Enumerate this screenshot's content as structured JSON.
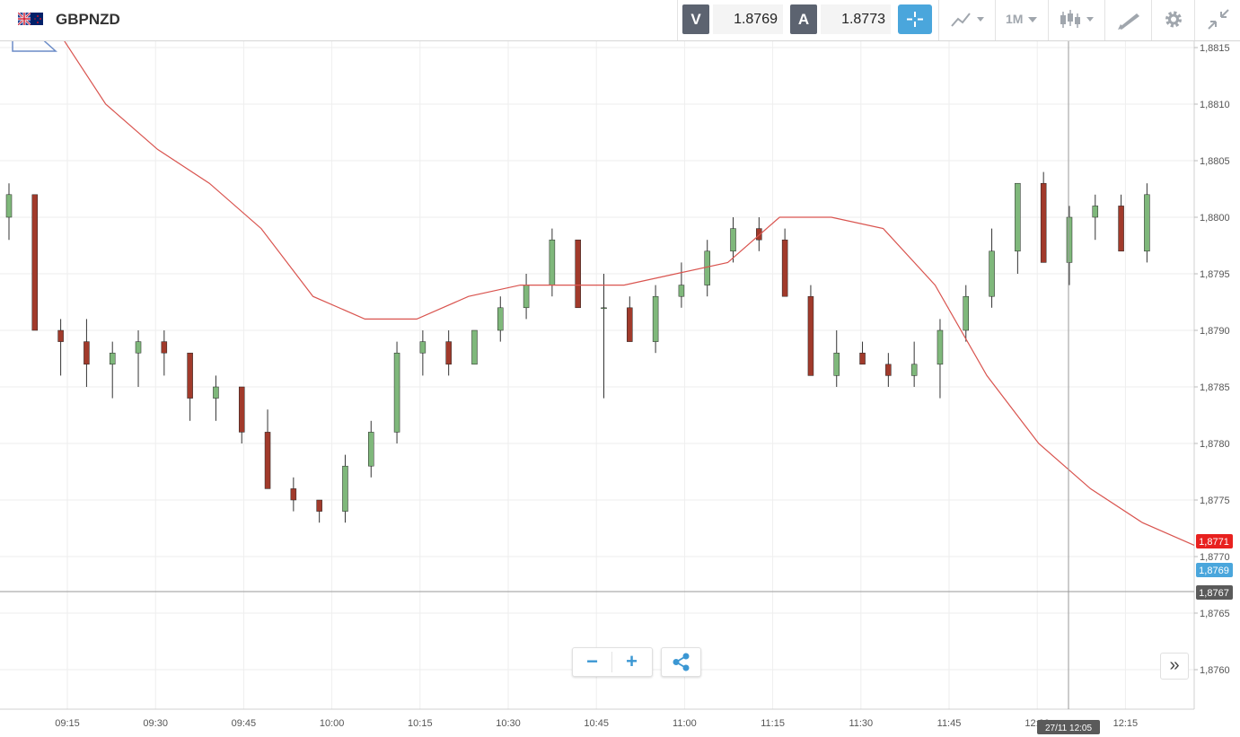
{
  "symbol": "GBPNZD",
  "sell": {
    "label": "V",
    "value": "1.8769"
  },
  "buy": {
    "label": "A",
    "value": "1.8773"
  },
  "toolbar": {
    "timeframe": "1M"
  },
  "crosshair_time": "27/11 12:05",
  "price_tags": {
    "red": {
      "value": "1,8771",
      "color": "#e8211f"
    },
    "blue": {
      "value": "1,8769",
      "color": "#4aa6dc"
    },
    "gray": {
      "value": "1,8767",
      "color": "#5a5a5a"
    }
  },
  "colors": {
    "up": "#7fb87b",
    "down": "#a13a2b",
    "ma": "#d9544f",
    "accent": "#4aa6dc"
  },
  "chart_data": {
    "type": "candlestick",
    "y_ticks": [
      "1,8815",
      "1,8810",
      "1,8805",
      "1,8800",
      "1,8795",
      "1,8790",
      "1,8785",
      "1,8780",
      "1,8775",
      "1,8770",
      "1,8765",
      "1,8760"
    ],
    "x_ticks": [
      "09:15",
      "09:30",
      "09:45",
      "10:00",
      "10:15",
      "10:30",
      "10:45",
      "11:00",
      "11:15",
      "11:30",
      "11:45",
      "12:00",
      "12:15"
    ],
    "ylim": [
      1.87565,
      1.88155
    ],
    "candles_ohlc": [
      [
        1.88,
        1.8803,
        1.8798,
        1.8802
      ],
      [
        1.8802,
        1.8801,
        1.879,
        1.879
      ],
      [
        1.879,
        1.8791,
        1.8786,
        1.8789
      ],
      [
        1.8789,
        1.8791,
        1.8785,
        1.8787
      ],
      [
        1.8787,
        1.8789,
        1.8784,
        1.8788
      ],
      [
        1.8788,
        1.879,
        1.8785,
        1.8789
      ],
      [
        1.8789,
        1.879,
        1.8786,
        1.8788
      ],
      [
        1.8788,
        1.8788,
        1.8782,
        1.8784
      ],
      [
        1.8784,
        1.8786,
        1.8782,
        1.8785
      ],
      [
        1.8785,
        1.8785,
        1.878,
        1.8781
      ],
      [
        1.8781,
        1.8783,
        1.8776,
        1.8776
      ],
      [
        1.8776,
        1.8777,
        1.8774,
        1.8775
      ],
      [
        1.8775,
        1.8775,
        1.8773,
        1.8774
      ],
      [
        1.8774,
        1.8779,
        1.8773,
        1.8778
      ],
      [
        1.8778,
        1.8782,
        1.8777,
        1.8781
      ],
      [
        1.8781,
        1.8789,
        1.878,
        1.8788
      ],
      [
        1.8788,
        1.879,
        1.8786,
        1.8789
      ],
      [
        1.8789,
        1.879,
        1.8786,
        1.8787
      ],
      [
        1.8787,
        1.879,
        1.8787,
        1.879
      ],
      [
        1.879,
        1.8793,
        1.8789,
        1.8792
      ],
      [
        1.8792,
        1.8795,
        1.8791,
        1.8794
      ],
      [
        1.8794,
        1.8799,
        1.8793,
        1.8798
      ],
      [
        1.8798,
        1.8798,
        1.8792,
        1.8792
      ],
      [
        1.8792,
        1.8795,
        1.8784,
        1.8792
      ],
      [
        1.8792,
        1.8793,
        1.8789,
        1.8789
      ],
      [
        1.8789,
        1.8794,
        1.8788,
        1.8793
      ],
      [
        1.8793,
        1.8796,
        1.8792,
        1.8794
      ],
      [
        1.8794,
        1.8798,
        1.8793,
        1.8797
      ],
      [
        1.8797,
        1.88,
        1.8796,
        1.8799
      ],
      [
        1.8799,
        1.88,
        1.8797,
        1.8798
      ],
      [
        1.8798,
        1.8799,
        1.8793,
        1.8793
      ],
      [
        1.8793,
        1.8794,
        1.8786,
        1.8786
      ],
      [
        1.8786,
        1.879,
        1.8785,
        1.8788
      ],
      [
        1.8788,
        1.8789,
        1.8787,
        1.8787
      ],
      [
        1.8787,
        1.8788,
        1.8785,
        1.8786
      ],
      [
        1.8786,
        1.8789,
        1.8785,
        1.8787
      ],
      [
        1.8787,
        1.8791,
        1.8784,
        1.879
      ],
      [
        1.879,
        1.8794,
        1.8789,
        1.8793
      ],
      [
        1.8793,
        1.8799,
        1.8792,
        1.8797
      ],
      [
        1.8797,
        1.8803,
        1.8795,
        1.8803
      ],
      [
        1.8803,
        1.8804,
        1.8796,
        1.8796
      ],
      [
        1.8796,
        1.8801,
        1.8794,
        1.88
      ],
      [
        1.88,
        1.8802,
        1.8798,
        1.8801
      ],
      [
        1.8801,
        1.8802,
        1.8797,
        1.8797
      ],
      [
        1.8797,
        1.8803,
        1.8796,
        1.8802
      ]
    ],
    "ma_line": {
      "description": "red moving average line",
      "approx_values": [
        1.8817,
        1.881,
        1.8806,
        1.8803,
        1.8799,
        1.8793,
        1.8791,
        1.8791,
        1.8793,
        1.8794,
        1.8794,
        1.8794,
        1.8795,
        1.8796,
        1.88,
        1.88,
        1.8799,
        1.8794,
        1.8786,
        1.878,
        1.8776,
        1.8773,
        1.8771
      ]
    }
  }
}
